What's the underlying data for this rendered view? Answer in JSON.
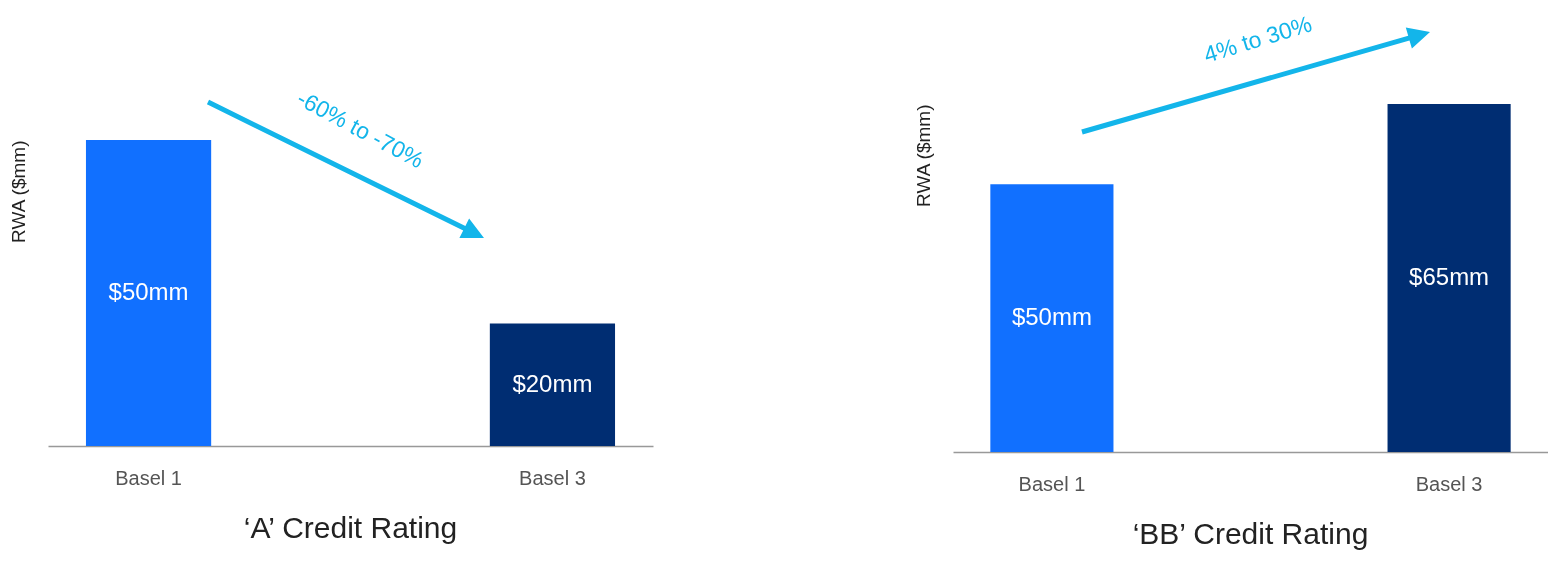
{
  "chart_data": [
    {
      "type": "bar",
      "title": "‘A’ Credit Rating",
      "ylabel": "RWA ($mm)",
      "categories": [
        "Basel 1",
        "Basel 3"
      ],
      "values": [
        50,
        20
      ],
      "colors": [
        "#1170ff",
        "#002d72"
      ],
      "value_labels": [
        "$50mm",
        "$20mm"
      ],
      "annotations": [
        "-60% to -70%"
      ],
      "tick_labels": "x"
    },
    {
      "type": "bar",
      "title": "‘BB’ Credit Rating",
      "ylabel": "RWA ($mm)",
      "categories": [
        "Basel 1",
        "Basel 3"
      ],
      "values": [
        50,
        65
      ],
      "colors": [
        "#1170ff",
        "#002d72"
      ],
      "value_labels": [
        "$50mm",
        "$65mm"
      ],
      "annotations": [
        "4% to 30%"
      ],
      "tick_labels": "x"
    }
  ]
}
